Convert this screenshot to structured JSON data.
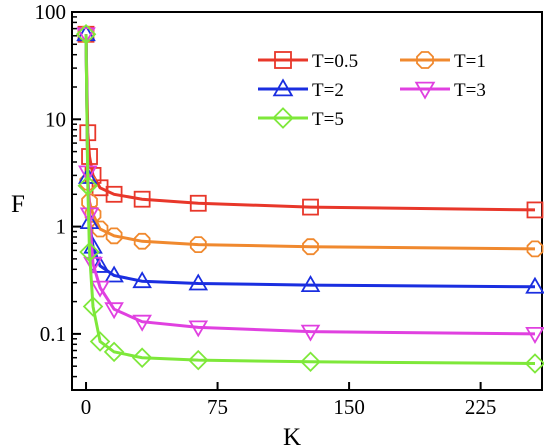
{
  "chart_data": {
    "type": "line",
    "xlabel": "K",
    "ylabel": "F",
    "xlim": [
      -8,
      260
    ],
    "ylim": [
      0.03,
      100
    ],
    "yscale": "log",
    "x_ticks": [
      0,
      75,
      150,
      225
    ],
    "x_tick_labels": [
      "0",
      "75",
      "150",
      "225"
    ],
    "y_ticks": [
      0.1,
      1,
      10,
      100
    ],
    "y_tick_labels": [
      "0.1",
      "1",
      "10",
      "100"
    ],
    "grid": false,
    "legend_position": "top-right",
    "series": [
      {
        "name": "T=0.5",
        "color": "#e8372a",
        "marker": "square",
        "x": [
          0,
          1,
          2,
          4,
          8,
          16,
          32,
          64,
          128,
          256
        ],
        "y": [
          62,
          7.5,
          4.5,
          3.0,
          2.3,
          2.0,
          1.8,
          1.65,
          1.52,
          1.43
        ]
      },
      {
        "name": "T=1",
        "color": "#f0892e",
        "marker": "circle",
        "x": [
          0,
          1,
          2,
          4,
          8,
          16,
          32,
          64,
          128,
          256
        ],
        "y": [
          62,
          2.6,
          1.7,
          1.3,
          0.95,
          0.82,
          0.73,
          0.68,
          0.65,
          0.62
        ]
      },
      {
        "name": "T=2",
        "color": "#1a2ee0",
        "marker": "triangle-up",
        "x": [
          0,
          1,
          2,
          4,
          8,
          16,
          32,
          64,
          128,
          256
        ],
        "y": [
          62,
          2.9,
          1.1,
          0.65,
          0.43,
          0.35,
          0.31,
          0.295,
          0.285,
          0.275
        ]
      },
      {
        "name": "T=3",
        "color": "#e040e0",
        "marker": "triangle-down",
        "x": [
          0,
          1,
          2,
          4,
          8,
          16,
          32,
          64,
          128,
          256
        ],
        "y": [
          62,
          3.2,
          1.3,
          0.45,
          0.27,
          0.17,
          0.13,
          0.115,
          0.105,
          0.1
        ]
      },
      {
        "name": "T=5",
        "color": "#7ee83a",
        "marker": "diamond",
        "x": [
          0,
          1,
          2,
          4,
          8,
          16,
          32,
          64,
          128,
          256
        ],
        "y": [
          62,
          2.4,
          0.58,
          0.18,
          0.085,
          0.068,
          0.06,
          0.057,
          0.055,
          0.053
        ]
      }
    ]
  }
}
